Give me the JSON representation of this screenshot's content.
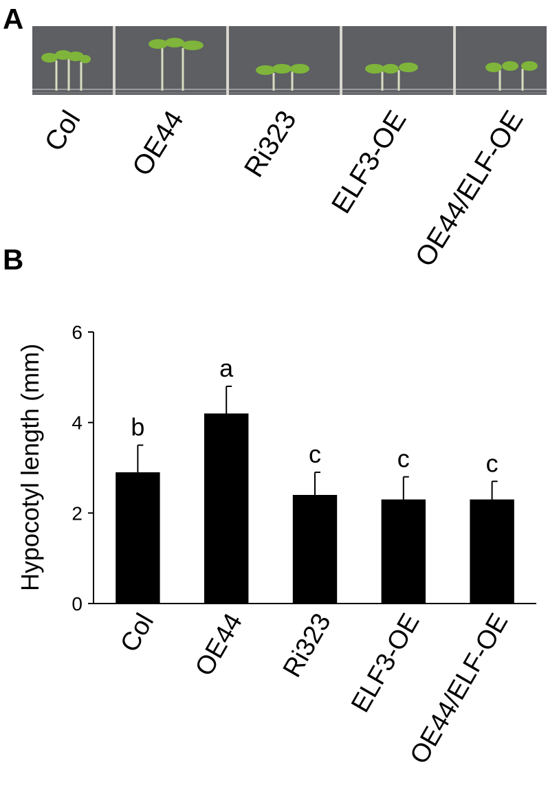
{
  "panel_a": {
    "panel_label": "A",
    "labels": [
      "Col",
      "OE44",
      "Ri323",
      "ELF3-OE",
      "OE44/ELF-OE"
    ]
  },
  "chart_data": {
    "type": "bar",
    "panel_label": "B",
    "y_label": "Hypocotyl length (mm)",
    "categories": [
      "Col",
      "OE44",
      "Ri323",
      "ELF3-OE",
      "OE44/ELF-OE"
    ],
    "values": [
      2.9,
      4.2,
      2.4,
      2.3,
      2.3
    ],
    "errors": [
      0.6,
      0.6,
      0.5,
      0.5,
      0.4
    ],
    "letters": [
      "b",
      "a",
      "c",
      "c",
      "c"
    ],
    "color": "#000000",
    "ylim": [
      0,
      6
    ],
    "yticks": [
      0,
      2,
      4,
      6
    ],
    "grid": false
  }
}
